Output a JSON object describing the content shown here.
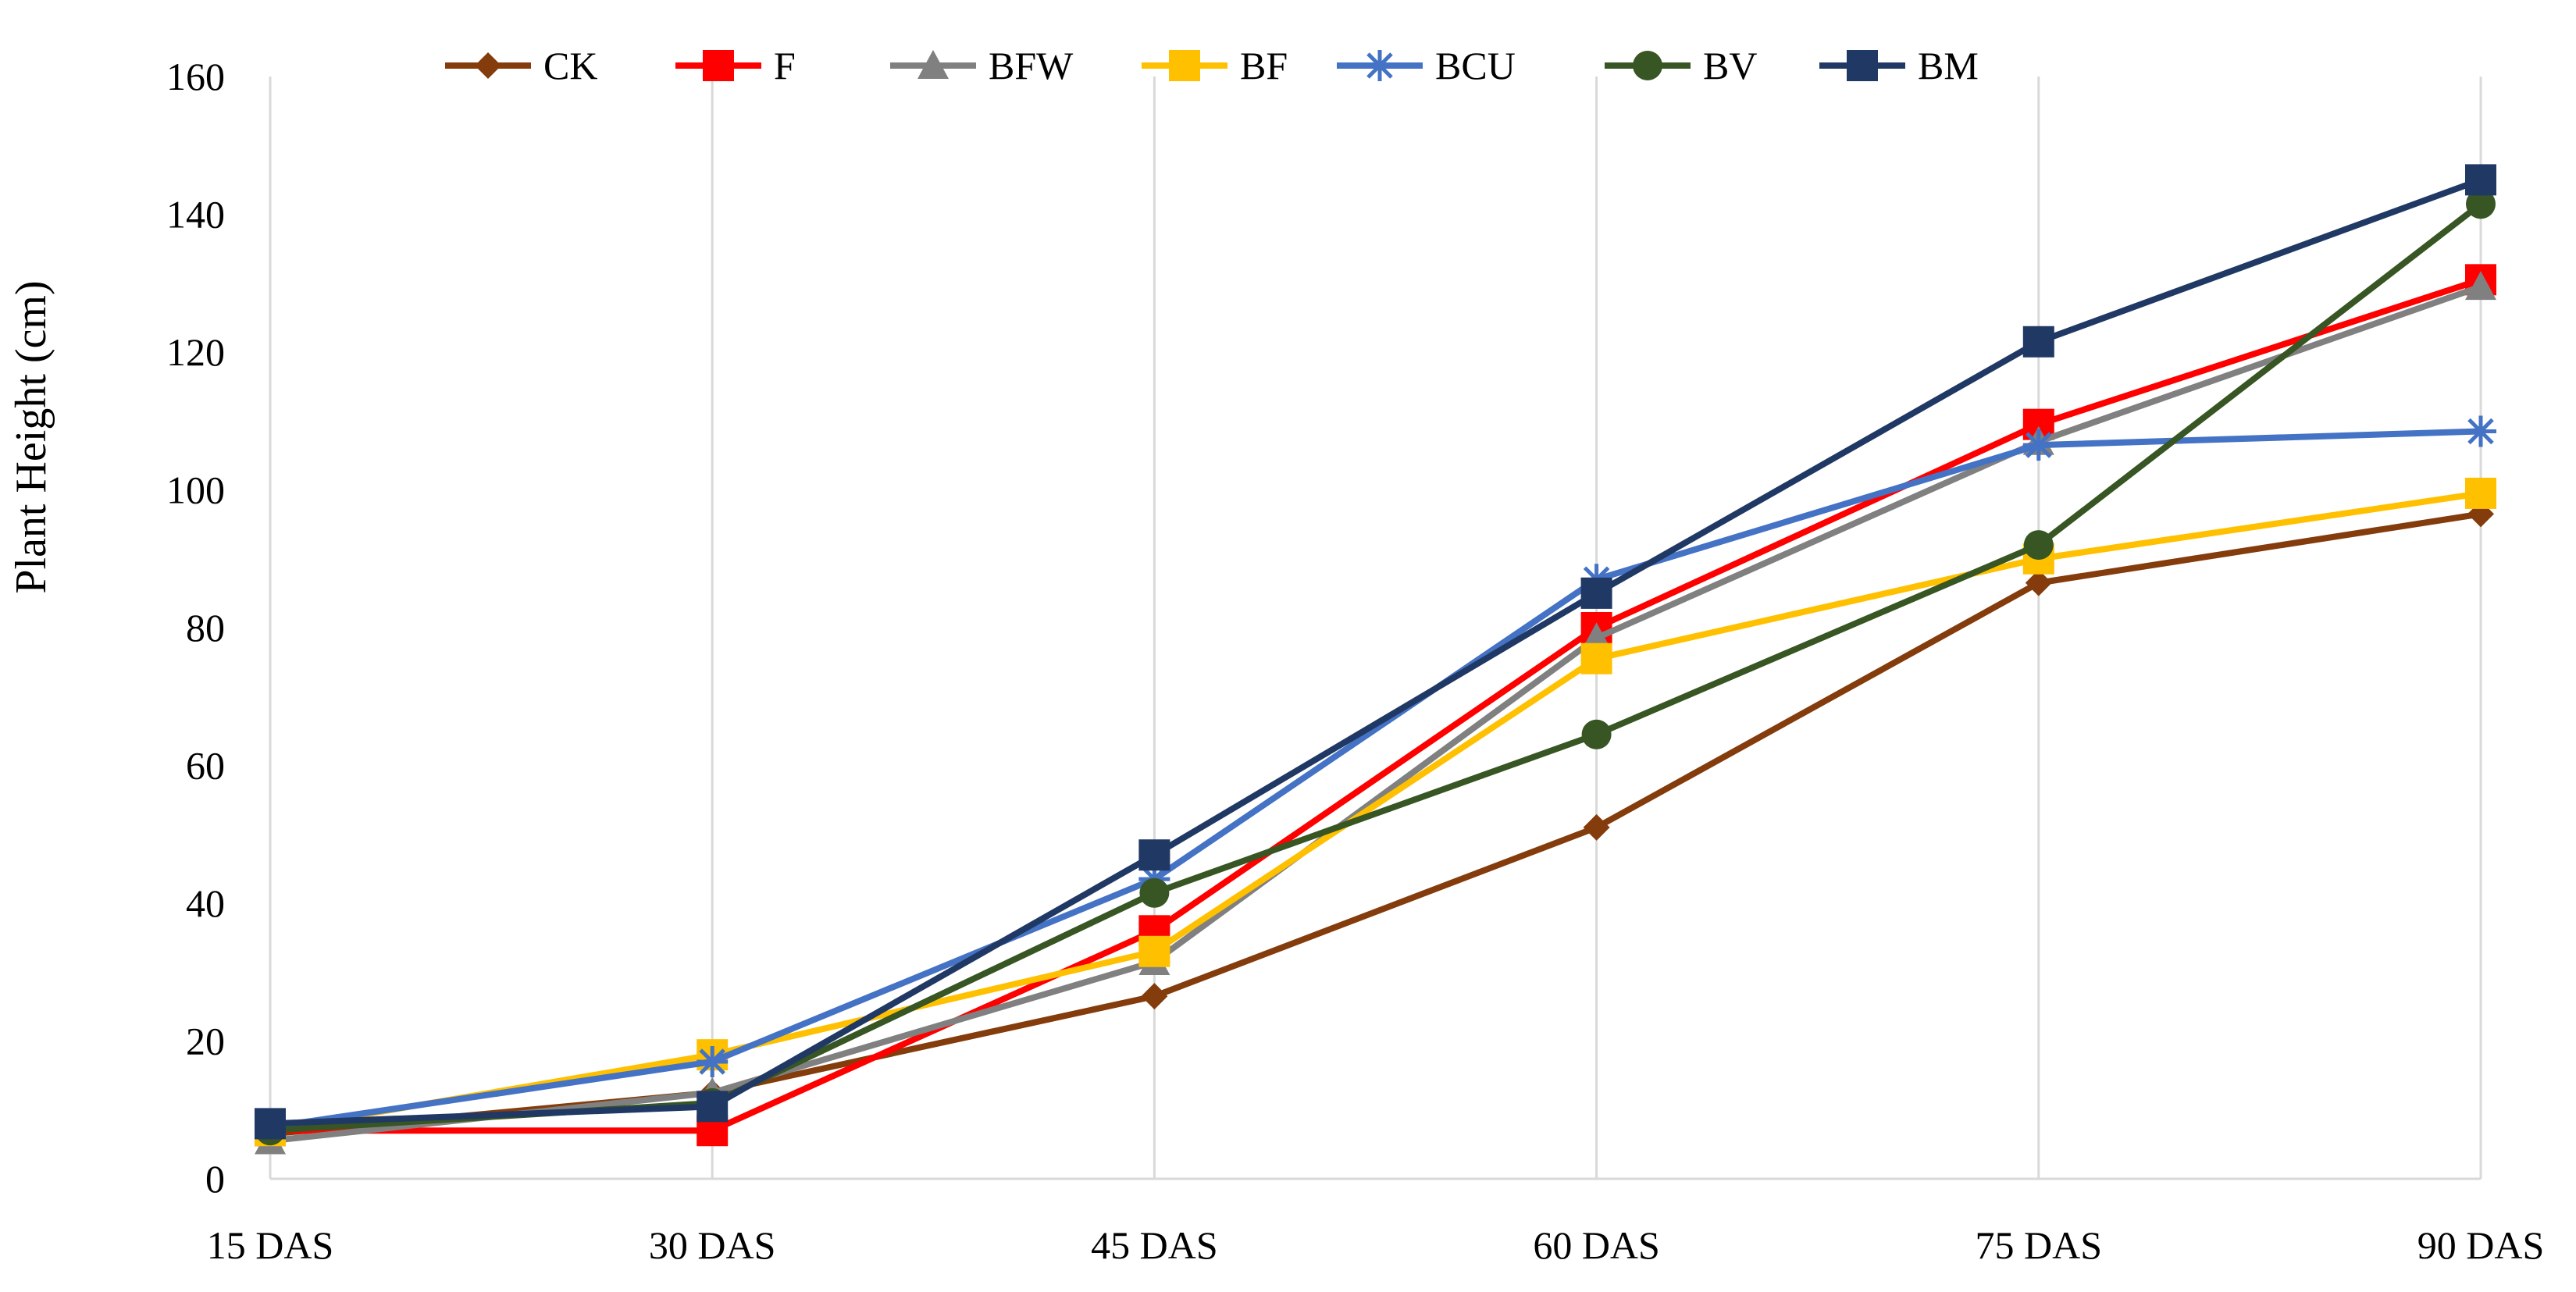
{
  "chart_data": {
    "type": "line",
    "title": "",
    "xlabel": "",
    "ylabel": "Plant Height (cm)",
    "ylim": [
      0,
      160
    ],
    "yticks": [
      0,
      20,
      40,
      60,
      80,
      100,
      120,
      140,
      160
    ],
    "grid": "vertical",
    "legend_position": "top",
    "categories": [
      "15 DAS",
      "30 DAS",
      "45 DAS",
      "60 DAS",
      "75 DAS",
      "90 DAS"
    ],
    "series": [
      {
        "name": "CK",
        "color": "#843C0C",
        "marker": "diamond",
        "values": [
          6.5,
          12.5,
          26.5,
          51,
          86.5,
          96.5
        ]
      },
      {
        "name": "F",
        "color": "#FF0000",
        "marker": "square",
        "values": [
          7,
          7,
          36,
          80,
          109.5,
          130.5
        ]
      },
      {
        "name": "BFW",
        "color": "#808080",
        "marker": "triangle",
        "values": [
          5.5,
          12.5,
          31.5,
          78.5,
          107,
          129.5
        ]
      },
      {
        "name": "BF",
        "color": "#FFC000",
        "marker": "square",
        "values": [
          7,
          18,
          33,
          75.5,
          90,
          99.5
        ]
      },
      {
        "name": "BCU",
        "color": "#4472C4",
        "marker": "star",
        "values": [
          7.5,
          17,
          43.5,
          87,
          106.5,
          108.5
        ]
      },
      {
        "name": "BV",
        "color": "#375623",
        "marker": "circle",
        "values": [
          7,
          11,
          41.5,
          64.5,
          92,
          141.5
        ]
      },
      {
        "name": "BM",
        "color": "#203864",
        "marker": "square",
        "values": [
          8,
          10.5,
          47,
          85,
          121.5,
          145
        ]
      }
    ]
  }
}
